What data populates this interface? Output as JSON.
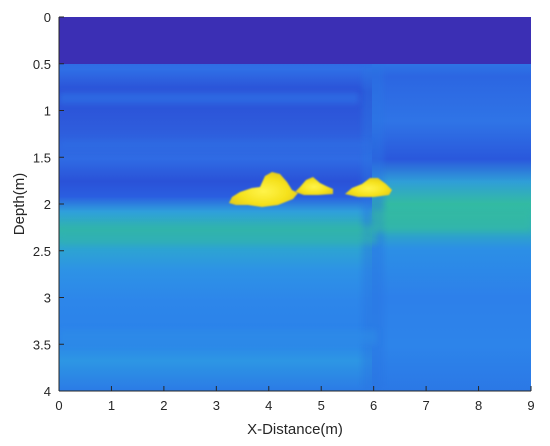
{
  "chart_data": {
    "type": "heatmap",
    "title": "",
    "xlabel": "X-Distance(m)",
    "ylabel": "Depth(m)",
    "xlim": [
      0,
      9
    ],
    "ylim": [
      0,
      4
    ],
    "y_reversed": true,
    "xticks": [
      "0",
      "1",
      "2",
      "3",
      "4",
      "5",
      "6",
      "7",
      "8",
      "9"
    ],
    "yticks": [
      "0",
      "0.5",
      "1",
      "1.5",
      "2",
      "2.5",
      "3",
      "3.5",
      "4"
    ],
    "colormap": "parula",
    "colors": {
      "background": "#3b2fb4",
      "upper_layer": "#2f66e0",
      "lower_layer": "#2d8ae8",
      "interface": "#2eb79e",
      "anomaly": "#f5e11c",
      "anomaly_core": "#fff44a"
    },
    "features": [
      {
        "name": "air-layer",
        "x_range": [
          0,
          9
        ],
        "depth_range": [
          0,
          0.5
        ]
      },
      {
        "name": "fault",
        "x": 6.0,
        "depth_range": [
          0.5,
          4
        ]
      },
      {
        "name": "anomaly-1",
        "x_range": [
          3.25,
          4.5
        ],
        "depth_range": [
          1.67,
          2.0
        ]
      },
      {
        "name": "anomaly-2",
        "x_range": [
          4.45,
          5.3
        ],
        "depth_range": [
          1.7,
          1.92
        ]
      },
      {
        "name": "anomaly-3",
        "x_range": [
          5.5,
          6.35
        ],
        "depth_range": [
          1.72,
          1.92
        ]
      }
    ]
  }
}
